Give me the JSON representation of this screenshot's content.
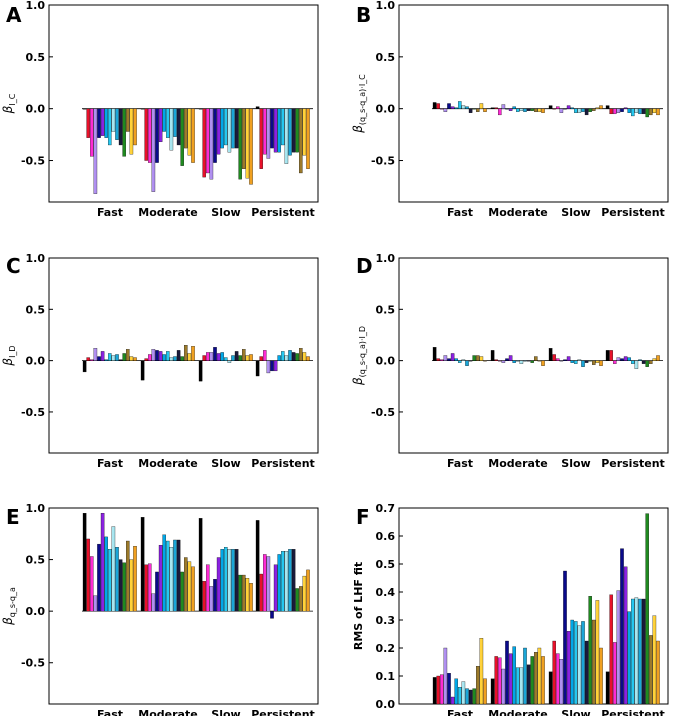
{
  "colors": [
    "#000000",
    "#e8102a",
    "#ff2ad4",
    "#b090f0",
    "#0a0a8a",
    "#8a22e0",
    "#00a8e8",
    "#25c8f0",
    "#a8e6f0",
    "#1aa6d8",
    "#1a1a3a",
    "#1f8a1f",
    "#9c7a2a",
    "#ffd23a",
    "#f0a020"
  ],
  "shared_xlabels": [
    "Fast",
    "Moderate",
    "Slow",
    "Persistent"
  ],
  "chart_data": [
    {
      "id": "A",
      "type": "bar",
      "panel_label": "A",
      "ylabel_base": "β",
      "ylabel_sub": "I_C",
      "categories": [
        "Fast",
        "Moderate",
        "Slow",
        "Persistent"
      ],
      "ylim": [
        -0.9,
        1.0
      ],
      "yticks": [
        -0.5,
        0.0,
        0.5,
        1.0
      ],
      "groups": [
        [
          0.0,
          -0.28,
          -0.46,
          -0.82,
          -0.28,
          -0.26,
          -0.28,
          -0.35,
          -0.22,
          -0.3,
          -0.35,
          -0.46,
          -0.22,
          -0.44,
          -0.35
        ],
        [
          0.0,
          -0.5,
          -0.52,
          -0.8,
          -0.52,
          -0.32,
          -0.22,
          -0.28,
          -0.4,
          -0.27,
          -0.35,
          -0.55,
          -0.38,
          -0.45,
          -0.52
        ],
        [
          0.0,
          -0.66,
          -0.62,
          -0.68,
          -0.52,
          -0.44,
          -0.38,
          -0.35,
          -0.42,
          -0.38,
          -0.38,
          -0.68,
          -0.58,
          -0.67,
          -0.73
        ],
        [
          0.02,
          -0.58,
          -0.44,
          -0.48,
          -0.38,
          -0.42,
          -0.42,
          -0.35,
          -0.53,
          -0.45,
          -0.42,
          -0.42,
          -0.62,
          -0.45,
          -0.58
        ]
      ]
    },
    {
      "id": "B",
      "type": "bar",
      "panel_label": "B",
      "ylabel_base": "β",
      "ylabel_sub": "(q_s-q_a)·I_C",
      "categories": [
        "Fast",
        "Moderate",
        "Slow",
        "Persistent"
      ],
      "ylim": [
        -0.9,
        1.0
      ],
      "yticks": [
        -0.5,
        0.0,
        0.5,
        1.0
      ],
      "groups": [
        [
          0.06,
          0.05,
          0.0,
          -0.03,
          0.05,
          0.02,
          0.01,
          0.07,
          0.03,
          0.02,
          -0.04,
          0.0,
          -0.03,
          0.05,
          -0.03
        ],
        [
          0.01,
          0.01,
          -0.06,
          0.04,
          0.0,
          -0.02,
          0.02,
          -0.03,
          -0.02,
          -0.03,
          -0.02,
          -0.02,
          -0.03,
          -0.03,
          -0.04
        ],
        [
          0.03,
          0.0,
          0.02,
          -0.04,
          0.0,
          0.03,
          0.01,
          -0.04,
          -0.04,
          -0.03,
          -0.06,
          -0.03,
          -0.02,
          0.01,
          0.03
        ],
        [
          0.03,
          -0.05,
          -0.05,
          -0.04,
          -0.03,
          0.01,
          -0.04,
          -0.07,
          -0.04,
          -0.05,
          -0.05,
          -0.08,
          -0.06,
          -0.04,
          -0.06
        ]
      ]
    },
    {
      "id": "C",
      "type": "bar",
      "panel_label": "C",
      "ylabel_base": "β",
      "ylabel_sub": "I_D",
      "categories": [
        "Fast",
        "Moderate",
        "Slow",
        "Persistent"
      ],
      "ylim": [
        -0.9,
        1.0
      ],
      "yticks": [
        -0.5,
        0.0,
        0.5,
        1.0
      ],
      "groups": [
        [
          -0.11,
          0.03,
          0.01,
          0.12,
          0.04,
          0.09,
          0.01,
          0.07,
          0.05,
          0.06,
          0.01,
          0.07,
          0.11,
          0.04,
          0.03
        ],
        [
          -0.19,
          0.02,
          0.06,
          0.11,
          0.1,
          0.09,
          0.06,
          0.09,
          0.03,
          0.04,
          0.1,
          0.04,
          0.15,
          0.07,
          0.14
        ],
        [
          -0.2,
          0.05,
          0.08,
          0.08,
          0.13,
          0.07,
          0.08,
          0.03,
          -0.02,
          0.05,
          0.09,
          0.05,
          0.11,
          0.05,
          0.06
        ],
        [
          -0.15,
          0.04,
          0.1,
          -0.12,
          -0.1,
          -0.1,
          0.05,
          0.09,
          0.05,
          0.1,
          0.08,
          0.07,
          0.12,
          0.08,
          0.04
        ]
      ]
    },
    {
      "id": "D",
      "type": "bar",
      "panel_label": "D",
      "ylabel_base": "β",
      "ylabel_sub": "(q_s-q_a)·I_D",
      "categories": [
        "Fast",
        "Moderate",
        "Slow",
        "Persistent"
      ],
      "ylim": [
        -0.9,
        1.0
      ],
      "yticks": [
        -0.5,
        0.0,
        0.5,
        1.0
      ],
      "groups": [
        [
          0.13,
          0.02,
          0.01,
          0.05,
          0.02,
          0.07,
          0.02,
          -0.02,
          0.01,
          -0.05,
          0.0,
          0.05,
          0.05,
          0.04,
          0.0
        ],
        [
          0.1,
          0.01,
          0.0,
          -0.02,
          0.02,
          0.05,
          -0.02,
          0.0,
          -0.03,
          0.0,
          0.0,
          -0.02,
          0.04,
          0.0,
          -0.05
        ],
        [
          0.12,
          0.06,
          0.02,
          0.0,
          0.01,
          0.04,
          -0.02,
          -0.03,
          0.01,
          -0.06,
          -0.02,
          0.0,
          -0.04,
          -0.02,
          -0.05
        ],
        [
          0.1,
          0.1,
          -0.03,
          0.03,
          0.02,
          0.04,
          0.03,
          -0.03,
          -0.08,
          0.01,
          -0.03,
          -0.06,
          -0.03,
          0.02,
          0.05
        ]
      ]
    },
    {
      "id": "E",
      "type": "bar",
      "panel_label": "E",
      "ylabel_base": "β",
      "ylabel_sub": "q_s-q_a",
      "categories": [
        "Fast",
        "Moderate",
        "Slow",
        "Persistent"
      ],
      "ylim": [
        -0.9,
        1.0
      ],
      "yticks": [
        -0.5,
        0.0,
        0.5,
        1.0
      ],
      "groups": [
        [
          0.95,
          0.7,
          0.53,
          0.15,
          0.65,
          0.95,
          0.72,
          0.6,
          0.82,
          0.62,
          0.5,
          0.47,
          0.68,
          0.5,
          0.63
        ],
        [
          0.91,
          0.45,
          0.46,
          0.17,
          0.38,
          0.64,
          0.74,
          0.68,
          0.62,
          0.69,
          0.69,
          0.38,
          0.52,
          0.48,
          0.43
        ],
        [
          0.9,
          0.29,
          0.45,
          0.24,
          0.31,
          0.52,
          0.6,
          0.62,
          0.6,
          0.6,
          0.6,
          0.35,
          0.35,
          0.32,
          0.27
        ],
        [
          0.88,
          0.36,
          0.55,
          0.53,
          -0.07,
          0.45,
          0.55,
          0.58,
          0.58,
          0.6,
          0.6,
          0.22,
          0.24,
          0.34,
          0.4
        ]
      ]
    },
    {
      "id": "F",
      "type": "bar",
      "panel_label": "F",
      "ylabel": "RMS of LHF fit",
      "categories": [
        "Fast",
        "Moderate",
        "Slow",
        "Persistent"
      ],
      "ylim": [
        0.0,
        0.7
      ],
      "yticks": [
        0.0,
        0.1,
        0.2,
        0.3,
        0.4,
        0.5,
        0.6,
        0.7
      ],
      "groups": [
        [
          0.095,
          0.1,
          0.105,
          0.2,
          0.11,
          0.025,
          0.09,
          0.06,
          0.08,
          0.055,
          0.05,
          0.055,
          0.135,
          0.235,
          0.09
        ],
        [
          0.09,
          0.17,
          0.165,
          0.125,
          0.225,
          0.18,
          0.205,
          0.13,
          0.13,
          0.2,
          0.14,
          0.17,
          0.185,
          0.2,
          0.17
        ],
        [
          0.115,
          0.225,
          0.18,
          0.16,
          0.475,
          0.26,
          0.3,
          0.295,
          0.28,
          0.295,
          0.225,
          0.385,
          0.3,
          0.37,
          0.2
        ],
        [
          0.115,
          0.39,
          0.22,
          0.405,
          0.555,
          0.49,
          0.33,
          0.375,
          0.38,
          0.375,
          0.375,
          0.68,
          0.245,
          0.315,
          0.225
        ]
      ]
    }
  ]
}
